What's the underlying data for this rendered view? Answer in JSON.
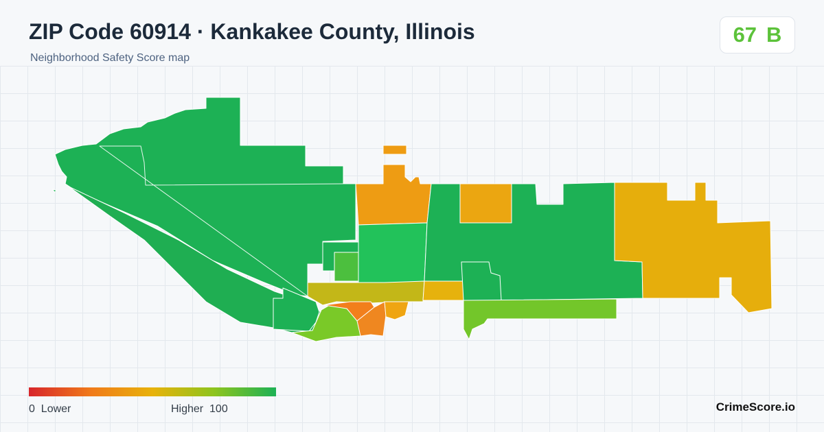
{
  "header": {
    "title": "ZIP Code 60914 · Kankakee County, Illinois",
    "subtitle": "Neighborhood Safety Score map"
  },
  "score": {
    "value": "67",
    "grade": "B",
    "color": "#5cc23a"
  },
  "legend": {
    "low_value": "0",
    "low_label": "Lower",
    "high_label": "Higher",
    "high_value": "100",
    "colors": [
      "#d7262b",
      "#f07a1a",
      "#e8b20b",
      "#8dc41e",
      "#1db155"
    ]
  },
  "brand": "CrimeScore.io"
}
